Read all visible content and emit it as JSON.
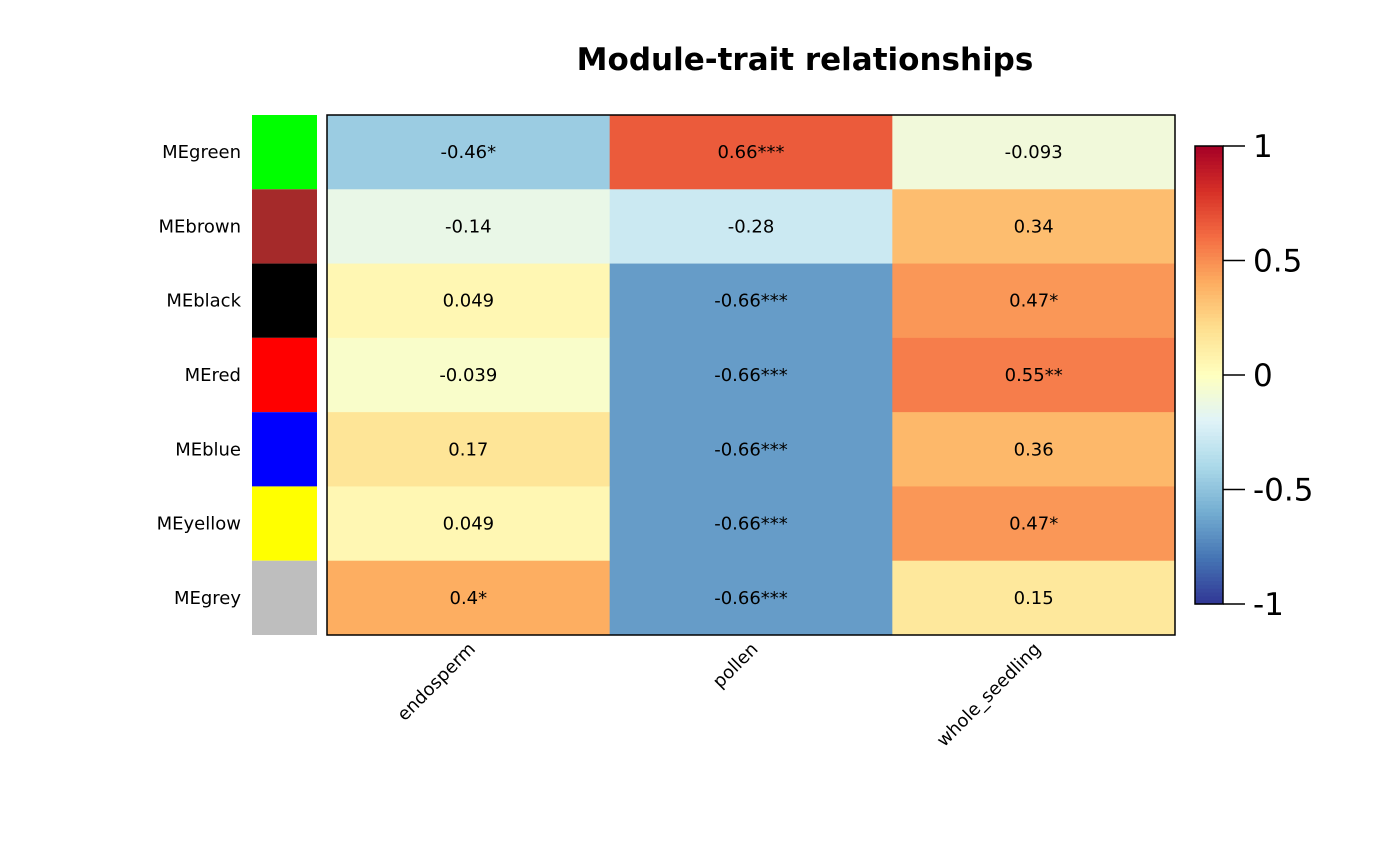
{
  "chart_data": {
    "type": "heatmap",
    "title": "Module-trait relationships",
    "rows": [
      "MEgreen",
      "MEbrown",
      "MEblack",
      "MEred",
      "MEblue",
      "MEyellow",
      "MEgrey"
    ],
    "row_colors": [
      "#00ff00",
      "#a52a2a",
      "#000000",
      "#ff0000",
      "#0000ff",
      "#ffff00",
      "#bebebe"
    ],
    "columns": [
      "endosperm",
      "pollen",
      "whole_seedling"
    ],
    "values": [
      [
        -0.46,
        0.66,
        -0.093
      ],
      [
        -0.14,
        -0.28,
        0.34
      ],
      [
        0.049,
        -0.66,
        0.47
      ],
      [
        -0.039,
        -0.66,
        0.55
      ],
      [
        0.17,
        -0.66,
        0.36
      ],
      [
        0.049,
        -0.66,
        0.47
      ],
      [
        0.4,
        -0.66,
        0.15
      ]
    ],
    "labels": [
      [
        "-0.46*",
        "0.66***",
        "-0.093"
      ],
      [
        "-0.14",
        "-0.28",
        "0.34"
      ],
      [
        "0.049",
        "-0.66***",
        "0.47*"
      ],
      [
        "-0.039",
        "-0.66***",
        "0.55**"
      ],
      [
        "0.17",
        "-0.66***",
        "0.36"
      ],
      [
        "0.049",
        "-0.66***",
        "0.47*"
      ],
      [
        "0.4*",
        "-0.66***",
        "0.15"
      ]
    ],
    "zlim": [
      -1,
      1
    ],
    "legend_ticks": [
      {
        "value": 1,
        "label": "1"
      },
      {
        "value": 0.5,
        "label": "0.5"
      },
      {
        "value": 0,
        "label": "0"
      },
      {
        "value": -0.5,
        "label": "-0.5"
      },
      {
        "value": -1,
        "label": "-1"
      }
    ],
    "colormap": [
      "#313695",
      "#4575b4",
      "#74add1",
      "#abd9e9",
      "#e0f3f8",
      "#ffffbf",
      "#fee090",
      "#fdae61",
      "#f46d43",
      "#d73027",
      "#a50026"
    ],
    "legend_position": "right"
  }
}
